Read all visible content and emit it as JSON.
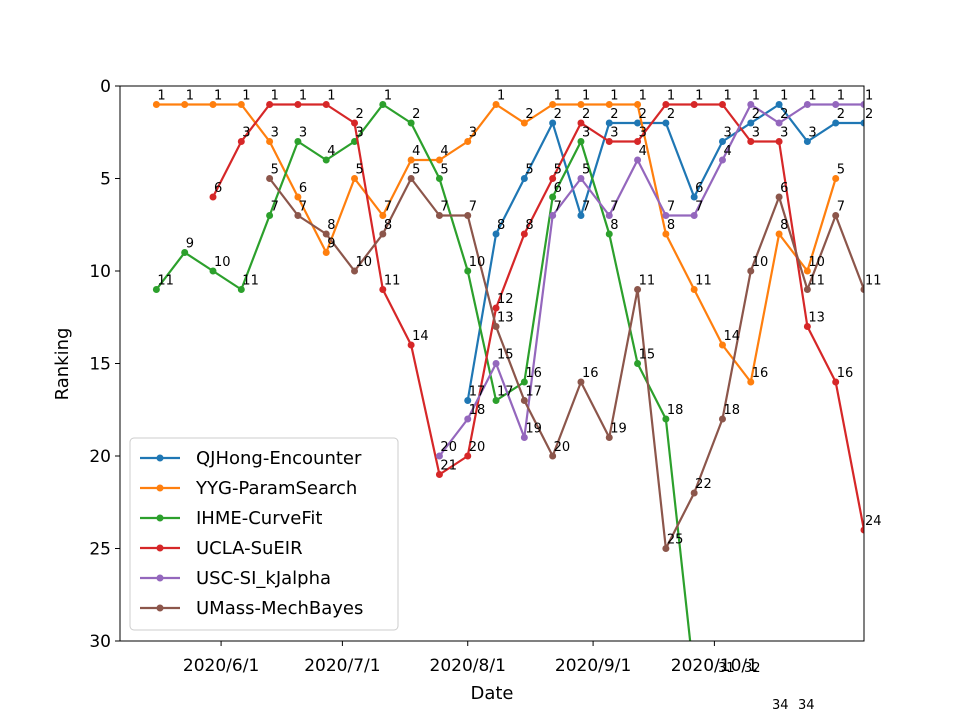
{
  "chart_data": {
    "type": "line",
    "title": "",
    "xlabel": "Date",
    "ylabel": "Ranking",
    "ylim": [
      30,
      0
    ],
    "y_inverted": true,
    "yticks": [
      0,
      5,
      10,
      15,
      20,
      25,
      30
    ],
    "xlim": [
      "2020-05-07",
      "2020-11-07"
    ],
    "xticks": [
      {
        "date": "2020-06-01",
        "label": "2020/6/1"
      },
      {
        "date": "2020-07-01",
        "label": "2020/7/1"
      },
      {
        "date": "2020-08-01",
        "label": "2020/8/1"
      },
      {
        "date": "2020-09-01",
        "label": "2020/9/1"
      },
      {
        "date": "2020-10-01",
        "label": "2020/10/1"
      }
    ],
    "grid": false,
    "legend_position": "lower-left",
    "dates": [
      "2020-05-16",
      "2020-05-23",
      "2020-05-30",
      "2020-06-06",
      "2020-06-13",
      "2020-06-20",
      "2020-06-27",
      "2020-07-04",
      "2020-07-11",
      "2020-07-18",
      "2020-07-25",
      "2020-08-01",
      "2020-08-08",
      "2020-08-15",
      "2020-08-22",
      "2020-08-29",
      "2020-09-05",
      "2020-09-12",
      "2020-09-19",
      "2020-09-26",
      "2020-10-03",
      "2020-10-10",
      "2020-10-17",
      "2020-10-24",
      "2020-10-31",
      "2020-11-07"
    ],
    "series": [
      {
        "name": "QJHong-Encounter",
        "color": "#1f77b4",
        "values": [
          null,
          null,
          null,
          null,
          null,
          null,
          null,
          null,
          null,
          null,
          null,
          17,
          8,
          5,
          2,
          7,
          2,
          2,
          2,
          6,
          3,
          2,
          1,
          3,
          2,
          2
        ]
      },
      {
        "name": "YYG-ParamSearch",
        "color": "#ff7f0e",
        "values": [
          1,
          1,
          1,
          1,
          3,
          6,
          9,
          5,
          7,
          4,
          4,
          3,
          1,
          2,
          1,
          1,
          1,
          1,
          8,
          11,
          14,
          16,
          8,
          10,
          5,
          null
        ]
      },
      {
        "name": "IHME-CurveFit",
        "color": "#2ca02c",
        "values": [
          11,
          9,
          10,
          11,
          7,
          3,
          4,
          3,
          1,
          2,
          5,
          10,
          17,
          16,
          6,
          3,
          8,
          15,
          18,
          32,
          null,
          null,
          null,
          null,
          null,
          null
        ]
      },
      {
        "name": "UCLA-SuEIR",
        "color": "#d62728",
        "values": [
          null,
          null,
          6,
          3,
          1,
          1,
          1,
          2,
          11,
          14,
          21,
          20,
          12,
          8,
          5,
          2,
          3,
          3,
          1,
          1,
          1,
          3,
          3,
          13,
          16,
          24
        ]
      },
      {
        "name": "USC-SI_kJalpha",
        "color": "#9467bd",
        "values": [
          null,
          null,
          null,
          null,
          null,
          null,
          null,
          null,
          null,
          null,
          20,
          18,
          15,
          19,
          7,
          5,
          7,
          4,
          7,
          7,
          4,
          1,
          2,
          1,
          1,
          1
        ]
      },
      {
        "name": "UMass-MechBayes",
        "color": "#8c564b",
        "values": [
          null,
          null,
          null,
          null,
          5,
          7,
          8,
          10,
          8,
          5,
          7,
          7,
          13,
          17,
          20,
          16,
          19,
          11,
          25,
          22,
          18,
          10,
          6,
          11,
          7,
          11
        ]
      }
    ],
    "offscale_labels": [
      "31",
      "32",
      "34",
      "34"
    ]
  }
}
